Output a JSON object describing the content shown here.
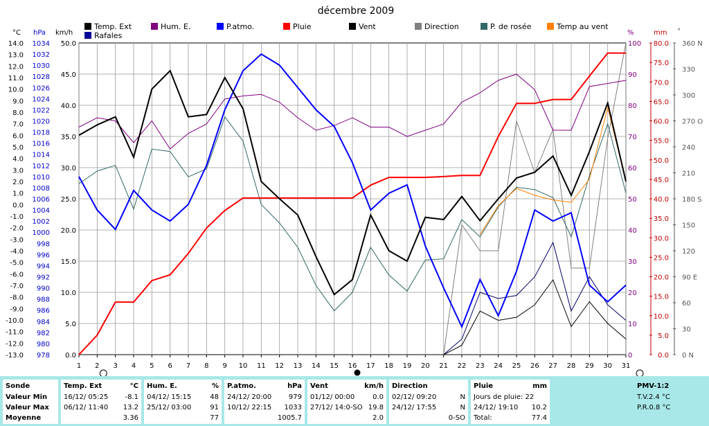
{
  "chart_data": {
    "type": "line",
    "title": "décembre 2009",
    "x": [
      1,
      2,
      3,
      4,
      5,
      6,
      7,
      8,
      9,
      10,
      11,
      12,
      13,
      14,
      15,
      16,
      17,
      18,
      19,
      20,
      21,
      22,
      23,
      24,
      25,
      26,
      27,
      28,
      29,
      30,
      31
    ],
    "axes": {
      "temp": {
        "label": "°C",
        "min": -13,
        "max": 14,
        "step": 1
      },
      "hpa": {
        "label": "hPa",
        "min": 978,
        "max": 1034,
        "step": 2
      },
      "kmh": {
        "label": "km/h",
        "min": 0,
        "max": 50,
        "step": 5
      },
      "pct": {
        "label": "%",
        "min": 0,
        "max": 100,
        "step": 10
      },
      "mm": {
        "label": "mm",
        "min": 0,
        "max": 80,
        "step": 5
      },
      "deg": {
        "label": "°",
        "ticks": [
          "360 N",
          "330",
          "300",
          "270 O",
          "240",
          "210",
          "180 S",
          "150",
          "120",
          "90 E",
          "60",
          "30",
          "0 N"
        ]
      }
    },
    "series": [
      {
        "name": "Temp. Ext",
        "axis": "temp",
        "color": "#000000",
        "width": 2,
        "values": [
          6.0,
          6.9,
          7.6,
          4.1,
          10.0,
          11.6,
          7.6,
          7.8,
          11.0,
          8.3,
          2.0,
          0.5,
          -0.9,
          -4.5,
          -7.8,
          -6.5,
          -0.9,
          -4.0,
          -4.9,
          -1.1,
          -1.3,
          0.7,
          -1.4,
          0.5,
          2.3,
          2.8,
          4.2,
          0.8,
          4.6,
          8.8,
          2.0
        ]
      },
      {
        "name": "Temp au vent",
        "axis": "temp",
        "color": "#ff8000",
        "width": 1,
        "values": [
          null,
          null,
          null,
          null,
          null,
          null,
          null,
          null,
          null,
          null,
          null,
          null,
          null,
          null,
          null,
          null,
          null,
          null,
          null,
          null,
          null,
          null,
          -2.6,
          -0.1,
          1.4,
          0.8,
          0.4,
          0.2,
          2.2,
          8.4,
          2.0
        ]
      },
      {
        "name": "P. de rosée",
        "axis": "temp",
        "color": "#336666",
        "width": 1,
        "values": [
          1.8,
          2.9,
          3.4,
          -0.4,
          4.8,
          4.6,
          2.4,
          3.1,
          7.6,
          5.5,
          0.0,
          -1.6,
          -3.7,
          -7.0,
          -9.2,
          -7.6,
          -3.7,
          -6.1,
          -7.5,
          -4.8,
          -4.7,
          -1.3,
          -2.8,
          -0.2,
          1.5,
          1.3,
          0.6,
          -2.8,
          2.5,
          7.0,
          1.0
        ]
      },
      {
        "name": "Rafales",
        "axis": "kmh",
        "color": "#000066",
        "width": 1,
        "values": [
          null,
          null,
          null,
          null,
          null,
          null,
          null,
          null,
          null,
          null,
          null,
          null,
          null,
          null,
          null,
          null,
          null,
          null,
          null,
          null,
          0.0,
          2.5,
          10.0,
          9.0,
          9.5,
          12.5,
          18.0,
          7.0,
          12.5,
          8.0,
          5.5
        ]
      },
      {
        "name": "Vent",
        "axis": "kmh",
        "color": "#000000",
        "width": 1,
        "values": [
          null,
          null,
          null,
          null,
          null,
          null,
          null,
          null,
          null,
          null,
          null,
          null,
          null,
          null,
          null,
          null,
          null,
          null,
          null,
          null,
          0.0,
          1.5,
          7.0,
          5.5,
          6.0,
          8.0,
          12.0,
          4.5,
          8.5,
          5.0,
          2.5
        ]
      },
      {
        "name": "Direction",
        "axis": "deg",
        "color": "#808080",
        "width": 1,
        "values": [
          null,
          null,
          null,
          null,
          null,
          null,
          null,
          null,
          null,
          null,
          null,
          null,
          null,
          null,
          null,
          null,
          null,
          null,
          null,
          null,
          0,
          150,
          120,
          120,
          270,
          210,
          260,
          100,
          100,
          250,
          360
        ]
      },
      {
        "name": "Hum. E.",
        "axis": "pct",
        "color": "#800080",
        "width": 1,
        "values": [
          73,
          76,
          75,
          68,
          75,
          66,
          71,
          74,
          82,
          83,
          83.5,
          81,
          76,
          72,
          73.5,
          76,
          73,
          73,
          70,
          72,
          74,
          81,
          84,
          88,
          90,
          85,
          72,
          72,
          86,
          87,
          88
        ]
      },
      {
        "name": "P.atmo.",
        "axis": "hpa",
        "color": "#0000ff",
        "width": 2,
        "values": [
          1010,
          1004,
          1000.5,
          1007.5,
          1004,
          1002,
          1005,
          1012,
          1022,
          1029,
          1032,
          1030,
          1026,
          1022,
          1019,
          1012.5,
          1004,
          1007,
          1008.5,
          997.5,
          990,
          983,
          991.5,
          985,
          993,
          1004,
          1002,
          1003.5,
          990.5,
          987.5,
          990.5
        ]
      },
      {
        "name": "Pluie",
        "axis": "mm",
        "color": "#ff0000",
        "width": 2,
        "values": [
          0,
          5,
          13.5,
          13.5,
          19,
          20.5,
          26,
          32.5,
          37,
          40.2,
          40.2,
          40.2,
          40.2,
          40.2,
          40.2,
          40.2,
          43.5,
          45.5,
          45.5,
          45.5,
          45.7,
          46,
          46,
          56,
          64.5,
          64.5,
          65.5,
          65.5,
          71.5,
          77.4,
          77.4
        ]
      }
    ],
    "moon": {
      "first_quarter_days": [
        2,
        31
      ],
      "full_moon_day": 16
    }
  },
  "legend": [
    {
      "label": "Temp. Ext",
      "color": "#000000"
    },
    {
      "label": "Hum. E.",
      "color": "#800080"
    },
    {
      "label": "P.atmo.",
      "color": "#0000ff"
    },
    {
      "label": "Pluie",
      "color": "#ff0000"
    },
    {
      "label": "Vent",
      "color": "#000000"
    },
    {
      "label": "Direction",
      "color": "#808080"
    },
    {
      "label": "P. de rosée",
      "color": "#336666"
    },
    {
      "label": "Temp au vent",
      "color": "#ff8000"
    },
    {
      "label": "Rafales",
      "color": "#000099"
    }
  ],
  "summary": {
    "sonde": {
      "title": "Sonde",
      "rows": [
        "Valeur Min",
        "Valeur Max",
        "Moyenne"
      ]
    },
    "temp": {
      "title": "Temp. Ext",
      "unit": "°C",
      "min_time": "16/12/  05:25",
      "min_val": "-8.1",
      "max_time": "06/12/  11:40",
      "max_val": "13.2",
      "avg": "3.36"
    },
    "hum": {
      "title": "Hum. E.",
      "unit": "%",
      "min_time": "04/12/  15:15",
      "min_val": "48",
      "max_time": "25/12/  03:00",
      "max_val": "91",
      "avg": "77"
    },
    "patmo": {
      "title": "P.atmo.",
      "unit": "hPa",
      "min_time": "24/12/  20:00",
      "min_val": "979",
      "max_time": "10/12/  22:15",
      "max_val": "1033",
      "avg": "1005.7"
    },
    "vent": {
      "title": "Vent",
      "unit": "km/h",
      "min_time": "01/12/  00:00",
      "min_val": "0.0",
      "max_time": "27/12/  14:0-SO",
      "max_val": "19.8",
      "avg": "2.0"
    },
    "dir": {
      "title": "Direction",
      "min_time": "02/12/  09:20",
      "min_val": "N",
      "max_time": "24/12/  17:55",
      "max_val": "N",
      "avg": "0-SO"
    },
    "pluie": {
      "title": "Pluie",
      "unit": "mm",
      "row1": "Jours de pluie: 22",
      "row2_time": "24/12/  19:10",
      "row2_val": "10.2",
      "row3_label": "Total:",
      "row3_val": "77.4"
    },
    "pmv": {
      "title": "PMV-1:2",
      "tv": "T.V.2.4 °C",
      "pr": "P.R.0.8 °C"
    }
  }
}
